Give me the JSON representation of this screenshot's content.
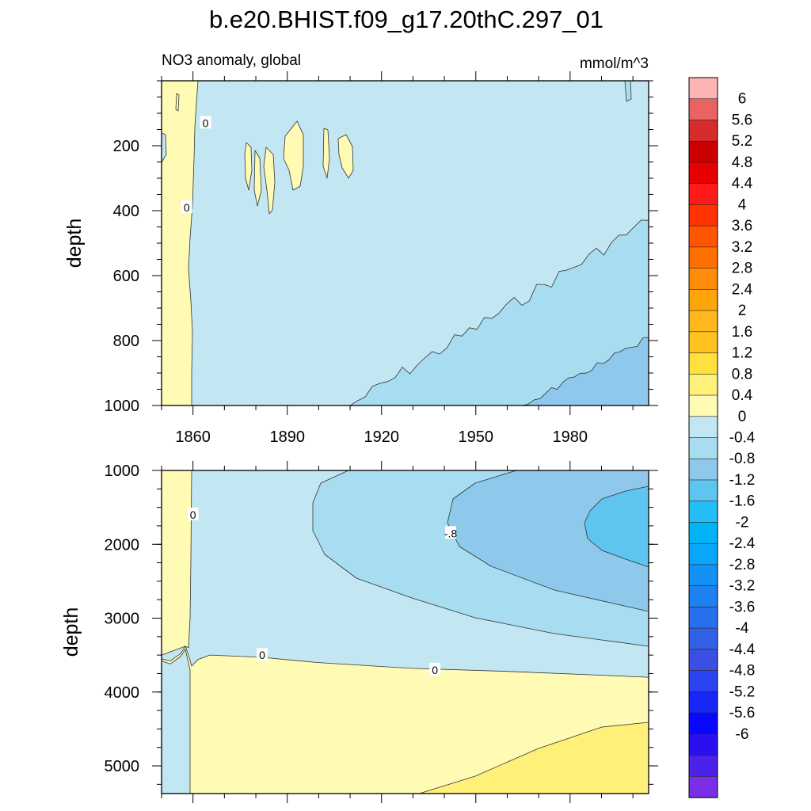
{
  "figure": {
    "title": "b.e20.BHIST.f09_g17.20thC.297_01",
    "subtitle_left": "NO3 anomaly, global",
    "subtitle_right": "mmol/m^3"
  },
  "chart_data": [
    {
      "type": "contour",
      "panel": "upper",
      "xlabel": "",
      "ylabel": "depth",
      "xlim": [
        1850,
        2005
      ],
      "ylim": [
        0,
        1000
      ],
      "y_inverted": true,
      "x_ticks": [
        1860,
        1890,
        1920,
        1950,
        1980
      ],
      "x_tick_labels": [
        "1860",
        "1890",
        "1920",
        "1950",
        "1980"
      ],
      "y_ticks": [
        200,
        400,
        600,
        800,
        1000
      ],
      "y_tick_labels": [
        "200",
        "400",
        "600",
        "800",
        "1000"
      ],
      "background_level": "-0.4 to 0",
      "regions": [
        {
          "level": "0 to 0.4",
          "shape": "vertical band 1850-1860, full depth"
        },
        {
          "level": "0 to 0.4",
          "shape": "patches near 1868-1902, depth 150-320"
        },
        {
          "level": "-0.8 to -0.4",
          "shape": "wedge from (1910,1000) rising to (2005,430)"
        },
        {
          "level": "-1.2 to -0.8",
          "shape": "wedge from (1965,1000) rising to (2005,790)"
        }
      ],
      "contour_labels": [
        {
          "text": "0",
          "x": 1864,
          "y": 130
        },
        {
          "text": "0",
          "x": 1858,
          "y": 390
        }
      ]
    },
    {
      "type": "contour",
      "panel": "lower",
      "xlabel": "",
      "ylabel": "depth",
      "xlim": [
        1850,
        2005
      ],
      "ylim": [
        1000,
        5375
      ],
      "y_inverted": true,
      "x_ticks": [
        1860,
        1890,
        1920,
        1950,
        1980
      ],
      "y_ticks": [
        1000,
        2000,
        3000,
        4000,
        5000
      ],
      "y_tick_labels": [
        "1000",
        "2000",
        "3000",
        "4000",
        "5000"
      ],
      "background_level": "-0.4 to 0",
      "regions": [
        {
          "level": "0 to 0.4",
          "shape": "below ~3500-3800 m plus band 1860-1860 at top"
        },
        {
          "level": "0.4 to 0.8",
          "shape": "bottom-right wedge from (1930,5375) to (2005,4400)"
        },
        {
          "level": "-0.8 to -0.4",
          "shape": "tongue from right edge reaching 1897 at 1600 m"
        },
        {
          "level": "-1.2 to -0.8",
          "shape": "tongue from right edge reaching 1940 at 1500 m"
        },
        {
          "level": "-1.6 to -1.2",
          "shape": "core near 1985-2005, depth 1300-2300"
        }
      ],
      "contour_labels": [
        {
          "text": "0",
          "x": 1860,
          "y": 1600
        },
        {
          "text": "-.8",
          "x": 1942,
          "y": 1850
        },
        {
          "text": "0",
          "x": 1882,
          "y": 3500
        },
        {
          "text": "0",
          "x": 1937,
          "y": 3700
        }
      ]
    }
  ],
  "colorbar": {
    "colors": [
      "#ffb4b4",
      "#e96363",
      "#d62c2c",
      "#cc0000",
      "#e60000",
      "#ff1a1a",
      "#ff3300",
      "#ff5500",
      "#ff7000",
      "#ff8c0a",
      "#ffa50a",
      "#ffb81e",
      "#ffc31f",
      "#ffe03c",
      "#fff07a",
      "#fffab4",
      "#c3e6f3",
      "#a8dcf0",
      "#8ec9eb",
      "#5ec5f0",
      "#25bdf5",
      "#00b4f7",
      "#0aa6f9",
      "#1491f4",
      "#1e81f0",
      "#2870ed",
      "#3361e6",
      "#3c4fe3",
      "#2b43f0",
      "#1a26f5",
      "#0808ff",
      "#2a10f0",
      "#4b22ea",
      "#7b2ee6"
    ],
    "labels": [
      "6",
      "5.6",
      "5.2",
      "4.8",
      "4.4",
      "4",
      "3.6",
      "3.2",
      "2.8",
      "2.4",
      "2",
      "1.6",
      "1.2",
      "0.8",
      "0.4",
      "0",
      "-0.4",
      "-0.8",
      "-1.2",
      "-1.6",
      "-2",
      "-2.4",
      "-2.8",
      "-3.2",
      "-3.6",
      "-4",
      "-4.4",
      "-4.8",
      "-5.2",
      "-5.6",
      "-6"
    ]
  },
  "palette": {
    "bg": "#c3e6f3",
    "pos1": "#fffab4",
    "pos2": "#fff07a",
    "neg2": "#a8dcf0",
    "neg3": "#8ec9eb",
    "neg4": "#5ec5f0",
    "line": "#333333"
  }
}
